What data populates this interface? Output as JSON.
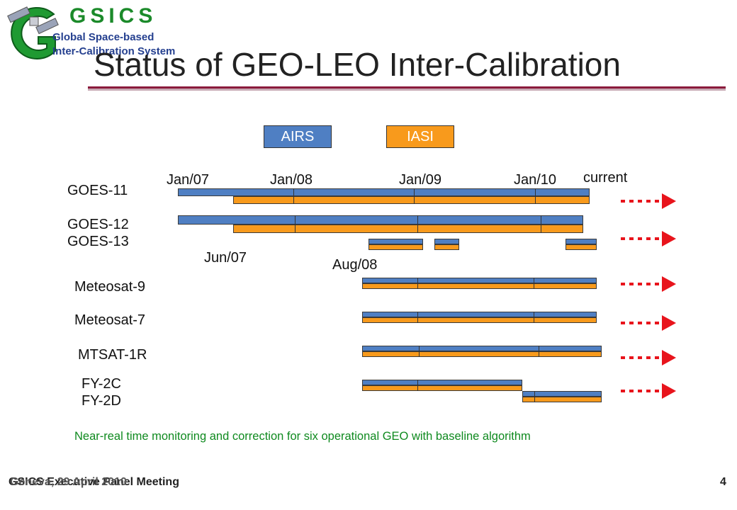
{
  "logo": {
    "name": "GSICS",
    "line1": "Global Space-based",
    "line2": "Inter-Calibration System"
  },
  "title": "Status of GEO-LEO Inter-Calibration",
  "legend": {
    "airs": "AIRS",
    "iasi": "IASI"
  },
  "colors": {
    "airs": "#4f7fc3",
    "iasi": "#f89a1c",
    "arrow": "#e8141c",
    "note": "#0f8a1f",
    "rule": "#8b1a3c"
  },
  "time_labels": {
    "jan07": "Jan/07",
    "jan08": "Jan/08",
    "jan09": "Jan/09",
    "jan10": "Jan/10",
    "current": "current",
    "jun07": "Jun/07",
    "aug08": "Aug/08"
  },
  "satellites": {
    "goes11": "GOES-11",
    "goes12": "GOES-12",
    "goes13": "GOES-13",
    "met9": "Meteosat-9",
    "met7": "Meteosat-7",
    "mtsat": "MTSAT-1R",
    "fy2c": "FY-2C",
    "fy2d": "FY-2D"
  },
  "note": "Near-real time monitoring and correction for six operational GEO with baseline algorithm",
  "footer": {
    "left": "GSICS Executive Panel Meeting",
    "overlap": "Geneva, 29 April 2010",
    "page": "4"
  }
}
